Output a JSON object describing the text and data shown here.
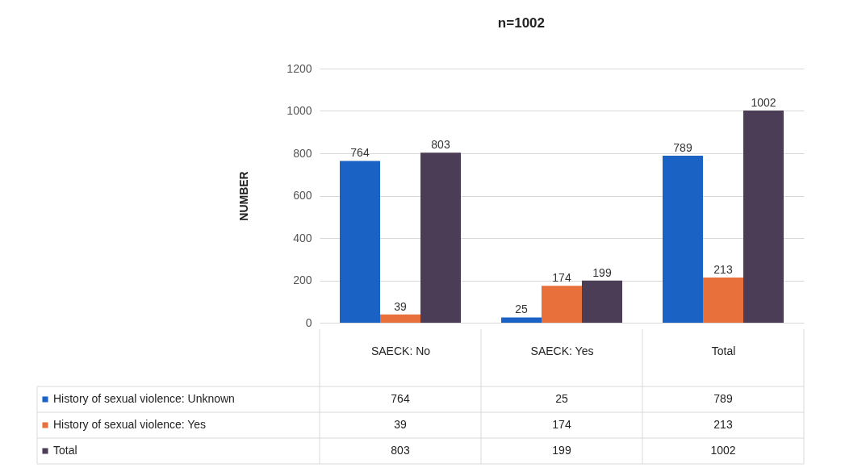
{
  "chart_data": [
    {
      "type": "bar",
      "title": "n=1002",
      "ylabel": "NUMBER",
      "categories": [
        null,
        null,
        null
      ],
      "series": [
        {
          "name": "History of sexual violence: Unknown",
          "color": "#1a62c4",
          "values": [
            764,
            25,
            789
          ]
        },
        {
          "name": "History of sexual violence: Yes",
          "color": "#e8703a",
          "values": [
            39,
            174,
            213
          ]
        },
        {
          "name": "Total",
          "color": "#4a3d55",
          "values": [
            803,
            199,
            1002
          ]
        }
      ],
      "ylim": [
        0,
        1200
      ],
      "yticks": [
        0,
        200,
        400,
        600,
        800,
        1000,
        1200
      ],
      "grid": "y",
      "legend": "bottom",
      "data_labels": true
    },
    {
      "type": "other",
      "categories": [
        "SAECK: No",
        "SAECK: Yes",
        "Total"
      ],
      "series": [
        {
          "values": [
            764,
            25,
            789
          ]
        },
        {
          "values": [
            39,
            174,
            213
          ]
        },
        {
          "values": [
            803,
            199,
            1002
          ]
        }
      ],
      "data_labels": true
    }
  ]
}
